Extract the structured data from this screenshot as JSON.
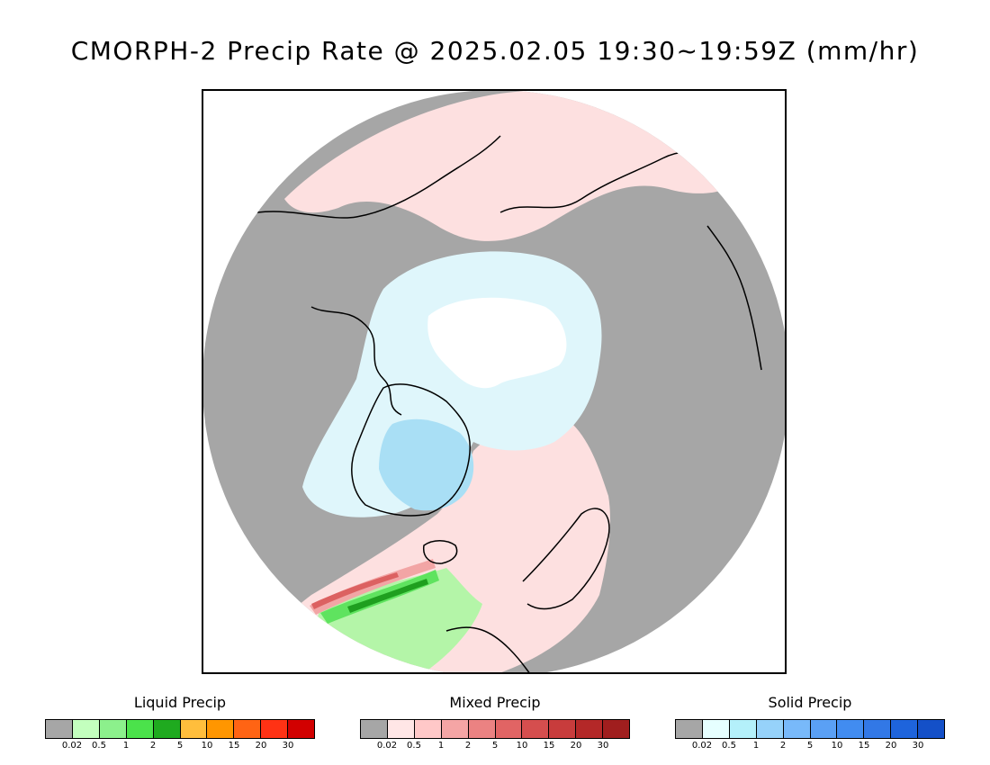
{
  "title": "CMORPH-2 Precip Rate @ 2025.02.05 19:30~19:59Z (mm/hr)",
  "map": {
    "projection": "north polar stereographic",
    "colors": {
      "ocean_no_precip": "#a6a6a6",
      "land_no_precip": "#a6a6a6",
      "coastline": "#000000",
      "mixed_light": "#fde0e0",
      "solid_light": "#dff6fb",
      "snow_white": "#ffffff",
      "solid_mid": "#a9dff5",
      "liquid_light": "#b4f5a8",
      "liquid_mid": "#5fe35f",
      "liquid_dark": "#1f9f1f",
      "mixed_mid": "#f2a5a5",
      "mixed_dark": "#dc6161"
    }
  },
  "legends": [
    {
      "title": "Liquid Precip",
      "ticks": [
        "0.02",
        "0.5",
        "1",
        "2",
        "5",
        "10",
        "15",
        "20",
        "30"
      ],
      "colors": [
        "#a6a6a6",
        "#c3ffbe",
        "#8cf08c",
        "#4be24b",
        "#1faa1f",
        "#ffbe3c",
        "#ff9600",
        "#ff6414",
        "#ff3214",
        "#d20000"
      ]
    },
    {
      "title": "Mixed Precip",
      "ticks": [
        "0.02",
        "0.5",
        "1",
        "2",
        "5",
        "10",
        "15",
        "20",
        "30"
      ],
      "colors": [
        "#a6a6a6",
        "#ffe6e6",
        "#ffc8c8",
        "#f5a5a5",
        "#eb8282",
        "#e16464",
        "#d54e4e",
        "#c83c3c",
        "#b42828",
        "#a01e1e"
      ]
    },
    {
      "title": "Solid Precip",
      "ticks": [
        "0.02",
        "0.5",
        "1",
        "2",
        "5",
        "10",
        "15",
        "20",
        "30"
      ],
      "colors": [
        "#a6a6a6",
        "#e6ffff",
        "#b4f0fa",
        "#96d2fa",
        "#78b9fa",
        "#5aa0f5",
        "#418cf0",
        "#3278e6",
        "#1e64dc",
        "#1450c8"
      ]
    }
  ]
}
